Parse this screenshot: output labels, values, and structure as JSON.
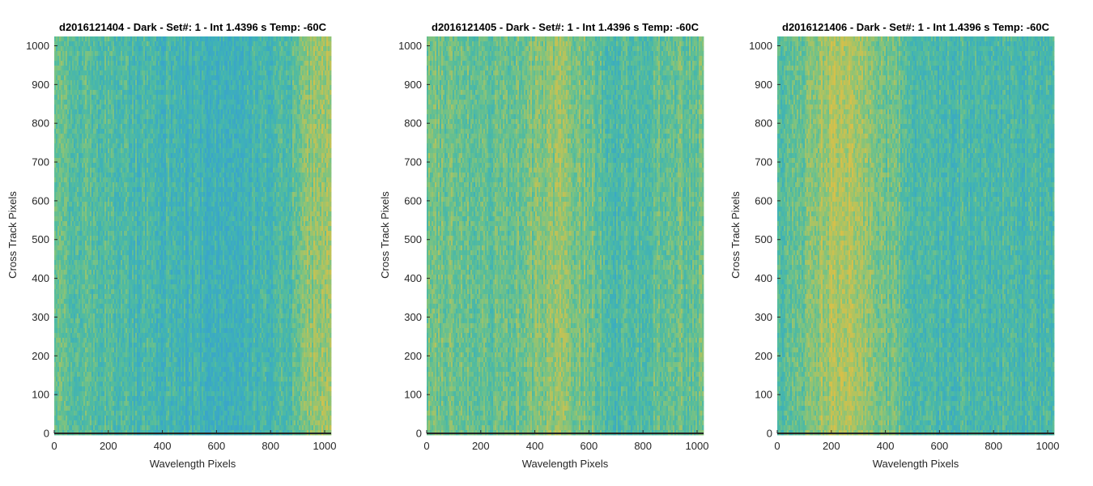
{
  "colors": {
    "colormap": [
      "#3aa6c8",
      "#3fb2b6",
      "#54bc9d",
      "#7fc37f",
      "#b1c35f",
      "#d6c04a"
    ],
    "axis": "#262626",
    "background": "#ffffff"
  },
  "chart_data": [
    {
      "type": "heatmap",
      "title": "d2016121404 - Dark - Set#: 1 - Int 1.4396 s Temp: -60C",
      "xlabel": "Wavelength Pixels",
      "ylabel": "Cross Track Pixels",
      "xlim": [
        0,
        1024
      ],
      "ylim": [
        0,
        1024
      ],
      "xticks": [
        0,
        200,
        400,
        600,
        800,
        1000
      ],
      "yticks": [
        0,
        100,
        200,
        300,
        400,
        500,
        600,
        700,
        800,
        900,
        1000
      ],
      "column_profile": {
        "x": [
          0,
          100,
          200,
          300,
          400,
          500,
          600,
          700,
          800,
          900,
          950,
          1000,
          1024
        ],
        "level": [
          0.45,
          0.4,
          0.35,
          0.3,
          0.25,
          0.2,
          0.15,
          0.22,
          0.3,
          0.45,
          0.7,
          0.75,
          0.7
        ]
      }
    },
    {
      "type": "heatmap",
      "title": "d2016121405 - Dark - Set#: 1 - Int 1.4396 s Temp: -60C",
      "xlabel": "Wavelength Pixels",
      "ylabel": "Cross Track Pixels",
      "xlim": [
        0,
        1024
      ],
      "ylim": [
        0,
        1024
      ],
      "xticks": [
        0,
        200,
        400,
        600,
        800,
        1000
      ],
      "yticks": [
        0,
        100,
        200,
        300,
        400,
        500,
        600,
        700,
        800,
        900,
        1000
      ],
      "column_profile": {
        "x": [
          0,
          100,
          200,
          300,
          400,
          500,
          600,
          700,
          800,
          900,
          1000,
          1024
        ],
        "level": [
          0.55,
          0.5,
          0.45,
          0.5,
          0.6,
          0.7,
          0.5,
          0.3,
          0.4,
          0.5,
          0.5,
          0.5
        ]
      }
    },
    {
      "type": "heatmap",
      "title": "d2016121406 - Dark - Set#: 1 - Int 1.4396 s Temp: -60C",
      "xlabel": "Wavelength Pixels",
      "ylabel": "Cross Track Pixels",
      "xlim": [
        0,
        1024
      ],
      "ylim": [
        0,
        1024
      ],
      "xticks": [
        0,
        200,
        400,
        600,
        800,
        1000
      ],
      "yticks": [
        0,
        100,
        200,
        300,
        400,
        500,
        600,
        700,
        800,
        900,
        1000
      ],
      "column_profile": {
        "x": [
          0,
          50,
          100,
          150,
          200,
          250,
          300,
          350,
          400,
          450,
          500,
          600,
          700,
          800,
          900,
          1000,
          1024
        ],
        "level": [
          0.35,
          0.45,
          0.55,
          0.7,
          0.8,
          0.85,
          0.78,
          0.65,
          0.55,
          0.5,
          0.35,
          0.3,
          0.3,
          0.32,
          0.3,
          0.3,
          0.3
        ]
      }
    }
  ]
}
